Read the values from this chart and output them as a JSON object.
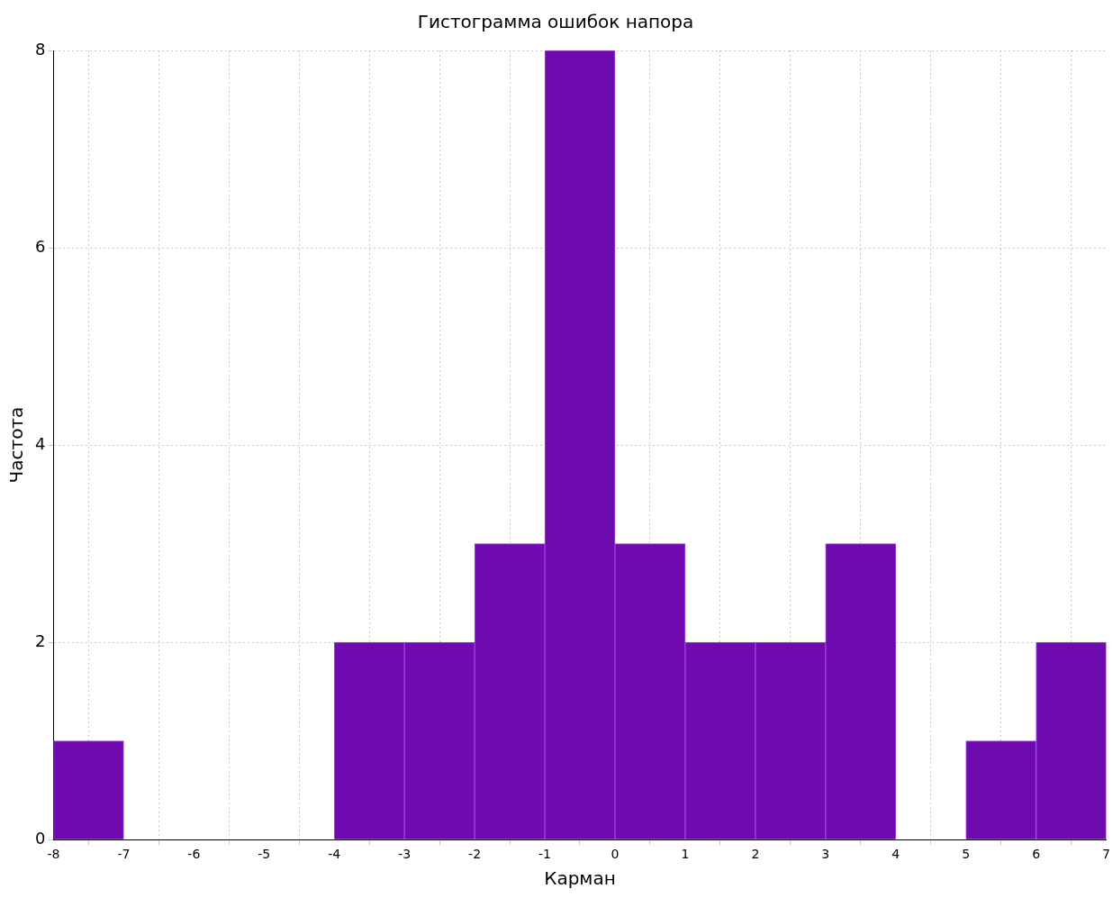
{
  "chart_data": {
    "type": "histogram",
    "title": "Гистограмма ошибок напора",
    "xlabel": "Карман",
    "ylabel": "Частота",
    "bins": [
      -8,
      -7,
      -6,
      -5,
      -4,
      -3,
      -2,
      -1,
      0,
      1,
      2,
      3,
      4,
      5,
      6,
      7
    ],
    "values": [
      1,
      0,
      0,
      0,
      2,
      2,
      3,
      8,
      3,
      2,
      2,
      3,
      0,
      1,
      2
    ],
    "color": "#6f0aaf",
    "xlim": [
      -8,
      7
    ],
    "xticks": [
      -8,
      -7,
      -6,
      -5,
      -4,
      -3,
      -2,
      -1,
      0,
      1,
      2,
      3,
      4,
      5,
      6,
      7
    ],
    "ylim": [
      0,
      8
    ],
    "yticks": [
      0,
      2,
      4,
      6,
      8
    ],
    "grid": true
  }
}
